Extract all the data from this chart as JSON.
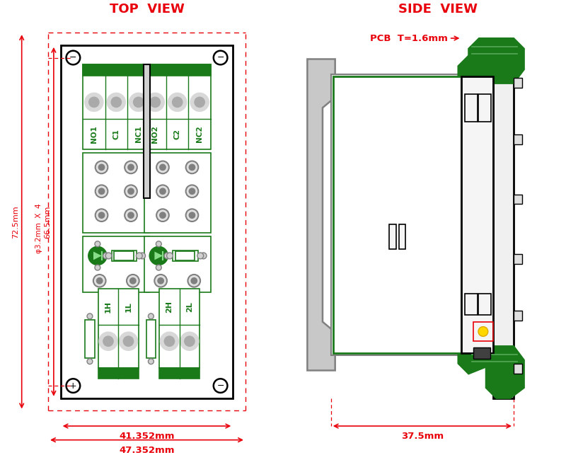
{
  "bg_color": "#ffffff",
  "red": "#e8000a",
  "green_dark": "#1a7a1a",
  "green_fill": "#1a7a1a",
  "gray": "#808080",
  "gray_light": "#c8c8c8",
  "black": "#000000",
  "title_top_view": "TOP  VIEW",
  "title_side_view": "SIDE  VIEW",
  "label_72": "72.5mm",
  "label_66": "66.5mm",
  "label_phi4": "φ3.2mm  X  4",
  "label_41": "41.352mm",
  "label_47": "47.352mm",
  "label_37": "37.5mm",
  "label_pcb": "PCB  T=1.6mm",
  "connector_labels_1": [
    "NO1",
    "C1",
    "NC1"
  ],
  "connector_labels_2": [
    "NO2",
    "C2",
    "NC2"
  ],
  "input_labels_1": [
    "1H",
    "1L"
  ],
  "input_labels_2": [
    "2H",
    "2L"
  ]
}
